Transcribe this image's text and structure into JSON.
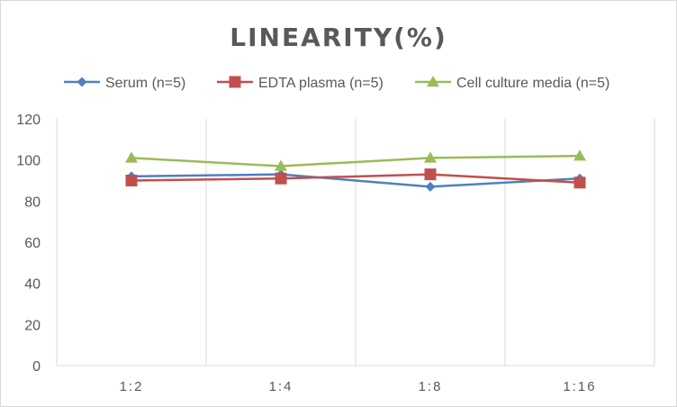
{
  "chart_data": {
    "type": "line",
    "title": "LINEARITY(%)",
    "xlabel": "",
    "ylabel": "",
    "categories": [
      "1:2",
      "1:4",
      "1:8",
      "1:16"
    ],
    "ylim": [
      0,
      120
    ],
    "yticks": [
      0,
      20,
      40,
      60,
      80,
      100,
      120
    ],
    "grid": "vertical",
    "legend_position": "top",
    "series": [
      {
        "name": "Serum (n=5)",
        "values": [
          92,
          93,
          87,
          91
        ],
        "color": "#4f81bd",
        "marker": "diamond"
      },
      {
        "name": "EDTA plasma (n=5)",
        "values": [
          90,
          91,
          93,
          89
        ],
        "color": "#c0504d",
        "marker": "square"
      },
      {
        "name": "Cell culture media (n=5)",
        "values": [
          101,
          97,
          101,
          102
        ],
        "color": "#9bbb59",
        "marker": "triangle"
      }
    ]
  }
}
